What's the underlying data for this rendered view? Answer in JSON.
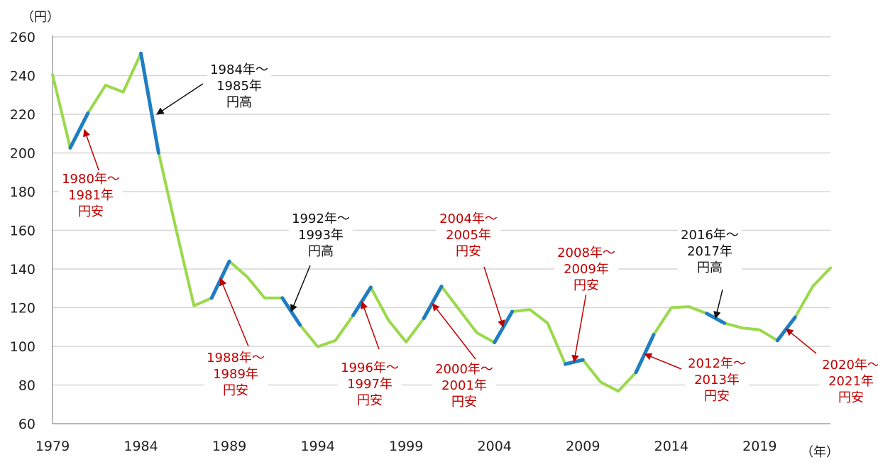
{
  "chart_data": {
    "type": "line",
    "y_unit": "（円）",
    "x_unit": "（年）",
    "x": [
      1979,
      1980,
      1981,
      1982,
      1983,
      1984,
      1985,
      1986,
      1987,
      1988,
      1989,
      1990,
      1991,
      1992,
      1993,
      1994,
      1995,
      1996,
      1997,
      1998,
      1999,
      2000,
      2001,
      2002,
      2003,
      2004,
      2005,
      2006,
      2007,
      2008,
      2009,
      2010,
      2011,
      2012,
      2013,
      2014,
      2015,
      2016,
      2017,
      2018,
      2019,
      2020,
      2021,
      2022,
      2023
    ],
    "values": [
      240.5,
      202.6,
      220.5,
      235,
      231.5,
      251.5,
      200,
      160,
      121,
      125,
      144,
      136,
      125,
      125,
      111,
      99.8,
      103,
      116,
      130.5,
      113.5,
      102.2,
      114.5,
      131,
      119,
      107,
      102,
      118,
      119,
      112,
      90.8,
      93,
      81.5,
      76.8,
      86.5,
      106,
      120,
      120.5,
      117,
      112,
      109.5,
      108.5,
      103,
      115,
      131,
      140.5
    ],
    "xticks": [
      1979,
      1984,
      1989,
      1994,
      1999,
      2004,
      2009,
      2014,
      2019
    ],
    "xtick_labels": [
      "1979",
      "1984",
      "1989",
      "1994",
      "1999",
      "2004",
      "2009",
      "2014",
      "2019"
    ],
    "yticks": [
      60,
      80,
      100,
      120,
      140,
      160,
      180,
      200,
      220,
      240,
      260
    ],
    "ytick_labels": [
      "60",
      "80",
      "100",
      "120",
      "140",
      "160",
      "180",
      "200",
      "220",
      "240",
      "260"
    ],
    "xlim": [
      1979,
      2023
    ],
    "ylim": [
      60,
      260
    ],
    "grid": true,
    "line_color": "#9ad94a",
    "highlight_color": "#1f7ec2",
    "annotation_colors": {
      "yen_strong": "#111111",
      "yen_weak": "#c00000"
    },
    "highlight_segments": [
      {
        "from": 1980,
        "to": 1981
      },
      {
        "from": 1984,
        "to": 1985
      },
      {
        "from": 1988,
        "to": 1989
      },
      {
        "from": 1992,
        "to": 1993
      },
      {
        "from": 1996,
        "to": 1997
      },
      {
        "from": 2000,
        "to": 2001
      },
      {
        "from": 2004,
        "to": 2005
      },
      {
        "from": 2008,
        "to": 2009
      },
      {
        "from": 2012,
        "to": 2013
      },
      {
        "from": 2016,
        "to": 2017
      },
      {
        "from": 2020,
        "to": 2021
      }
    ],
    "annotations": [
      {
        "id": "1980",
        "kind": "yen_weak",
        "lines": [
          "1980年～",
          "1981年",
          "円安"
        ],
        "target": [
          1980.8,
          212
        ]
      },
      {
        "id": "1984",
        "kind": "yen_strong",
        "lines": [
          "1984年～",
          "1985年",
          "円高"
        ],
        "target": [
          1984.9,
          220
        ]
      },
      {
        "id": "1988",
        "kind": "yen_weak",
        "lines": [
          "1988年～",
          "1989年",
          "円安"
        ],
        "target": [
          1988.5,
          135
        ]
      },
      {
        "id": "1992",
        "kind": "yen_strong",
        "lines": [
          "1992年～",
          "1993年",
          "円高"
        ],
        "target": [
          1992.5,
          118
        ]
      },
      {
        "id": "1996",
        "kind": "yen_weak",
        "lines": [
          "1996年～",
          "1997年",
          "円安"
        ],
        "target": [
          1996.5,
          123
        ]
      },
      {
        "id": "2000",
        "kind": "yen_weak",
        "lines": [
          "2000年～",
          "2001年",
          "円安"
        ],
        "target": [
          2000.5,
          122
        ]
      },
      {
        "id": "2004",
        "kind": "yen_weak",
        "lines": [
          "2004年～",
          "2005年",
          "円安"
        ],
        "target": [
          2004.5,
          110
        ]
      },
      {
        "id": "2008",
        "kind": "yen_weak",
        "lines": [
          "2008年～",
          "2009年",
          "円安"
        ],
        "target": [
          2008.5,
          92
        ]
      },
      {
        "id": "2012",
        "kind": "yen_weak",
        "lines": [
          "2012年～",
          "2013年",
          "円安"
        ],
        "target": [
          2012.5,
          96
        ]
      },
      {
        "id": "2016",
        "kind": "yen_strong",
        "lines": [
          "2016年～",
          "2017年",
          "円高"
        ],
        "target": [
          2016.5,
          114.5
        ]
      },
      {
        "id": "2020",
        "kind": "yen_weak",
        "lines": [
          "2020年～",
          "2021年",
          "円安"
        ],
        "target": [
          2020.5,
          109
        ]
      }
    ]
  }
}
